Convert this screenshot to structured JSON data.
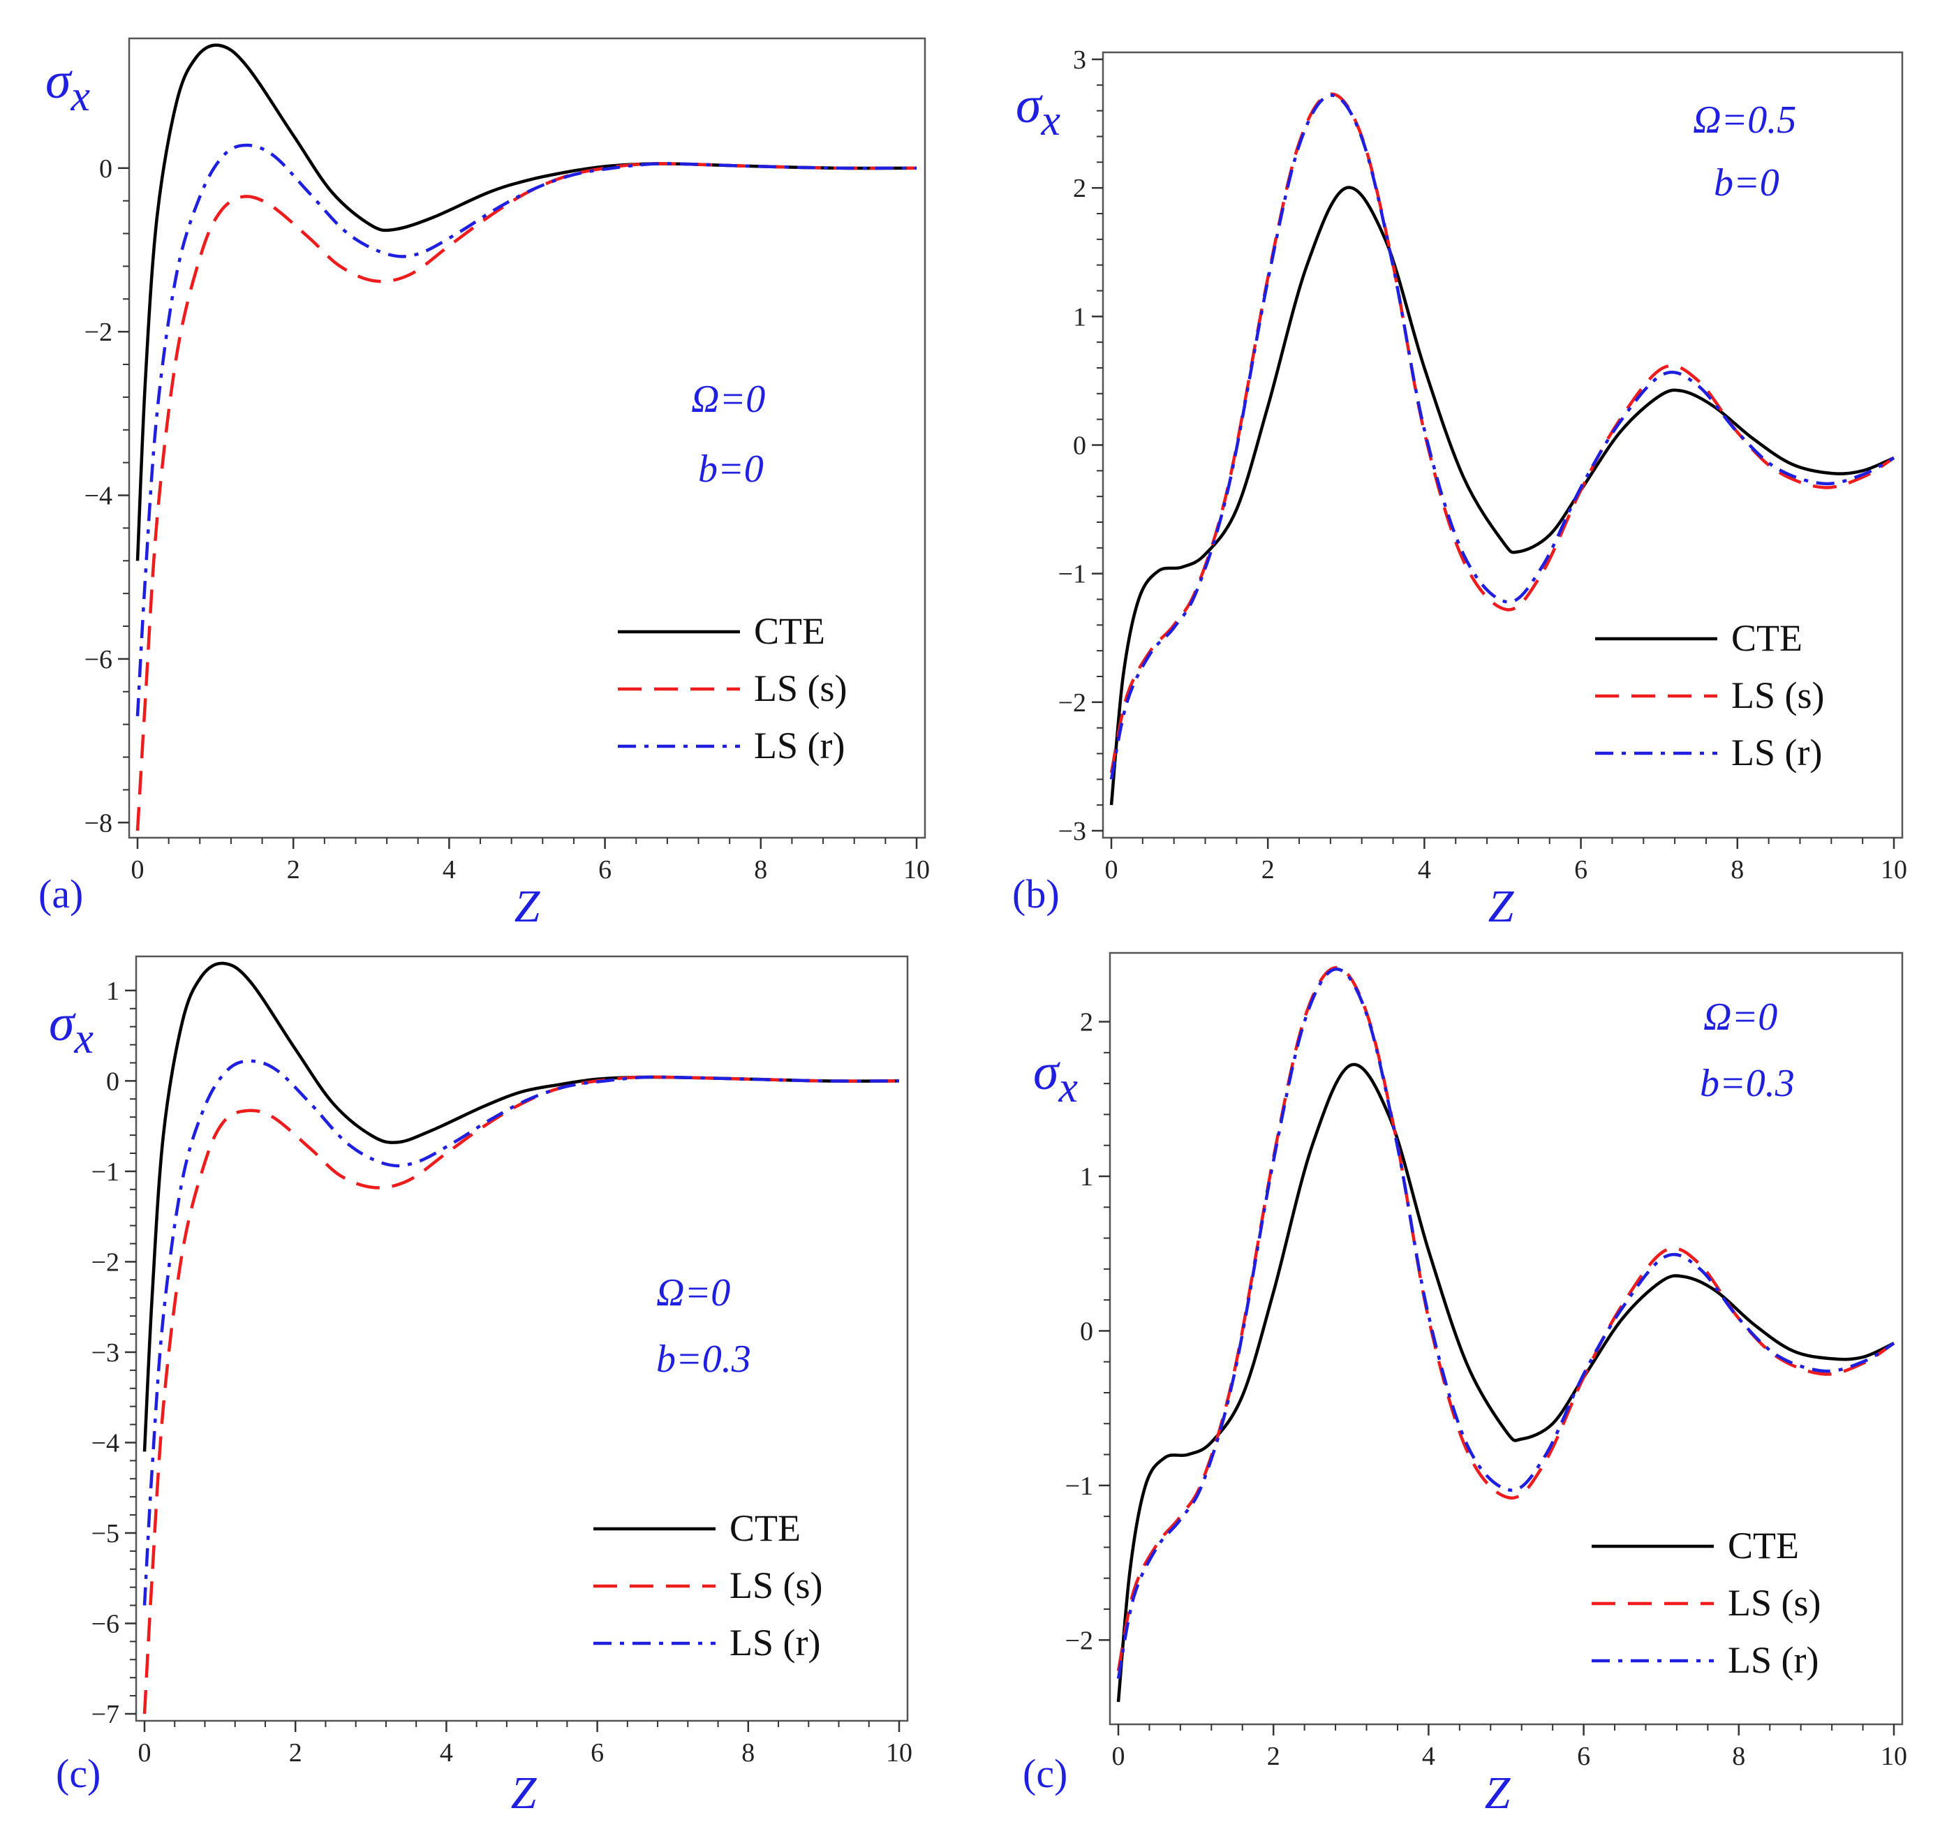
{
  "chart_data": [
    {
      "type": "line",
      "panel_label": "(a)",
      "ylabel": "σx",
      "xlabel": "Z",
      "xlim": [
        0,
        10
      ],
      "ylim": [
        -8.1,
        1.5
      ],
      "xticks": [
        0,
        2,
        4,
        6,
        8,
        10
      ],
      "yticks": [
        0,
        -2,
        -4,
        -6,
        -8
      ],
      "annotations": [
        "Ω=0",
        "b=0"
      ],
      "legend": [
        "CTE",
        "LS (s)",
        "LS (r)"
      ],
      "series": [
        {
          "name": "CTE",
          "style": "solid",
          "color": "#000000",
          "x": [
            0,
            0.1,
            0.25,
            0.5,
            0.75,
            1.05,
            1.4,
            2,
            2.5,
            3,
            3.3,
            3.8,
            4.5,
            5,
            5.5,
            6,
            6.5,
            7,
            8,
            9,
            10
          ],
          "y": [
            -4.8,
            -2.6,
            -0.6,
            0.8,
            1.35,
            1.5,
            1.25,
            0.4,
            -0.3,
            -0.7,
            -0.75,
            -0.6,
            -0.3,
            -0.15,
            -0.05,
            0.02,
            0.05,
            0.05,
            0.02,
            0,
            0
          ]
        },
        {
          "name": "LS (s)",
          "style": "dash",
          "color": "#ee1c1c",
          "x": [
            0,
            0.1,
            0.25,
            0.5,
            0.8,
            1.05,
            1.35,
            1.7,
            2.2,
            2.6,
            3.05,
            3.5,
            4,
            4.5,
            5,
            5.5,
            6,
            6.5,
            7,
            8,
            9,
            10
          ],
          "y": [
            -8.1,
            -6.5,
            -4.3,
            -2.3,
            -1.1,
            -0.55,
            -0.35,
            -0.45,
            -0.85,
            -1.2,
            -1.38,
            -1.3,
            -0.95,
            -0.6,
            -0.3,
            -0.1,
            0,
            0.05,
            0.05,
            0.02,
            0,
            0
          ]
        },
        {
          "name": "LS (r)",
          "style": "dashdot",
          "color": "#1f1fe0",
          "x": [
            0,
            0.1,
            0.25,
            0.5,
            0.8,
            1.1,
            1.4,
            1.75,
            2.2,
            2.7,
            3.2,
            3.6,
            4.1,
            4.6,
            5.1,
            5.6,
            6.1,
            6.6,
            7,
            8,
            9,
            10
          ],
          "y": [
            -6.7,
            -5.0,
            -3.0,
            -1.3,
            -0.35,
            0.15,
            0.28,
            0.15,
            -0.3,
            -0.8,
            -1.05,
            -1.05,
            -0.8,
            -0.5,
            -0.25,
            -0.08,
            0,
            0.05,
            0.05,
            0.02,
            0,
            0
          ]
        }
      ]
    },
    {
      "type": "line",
      "panel_label": "(b)",
      "ylabel": "σx",
      "xlabel": "Z",
      "xlim": [
        0,
        10
      ],
      "ylim": [
        -3,
        3
      ],
      "xticks": [
        0,
        2,
        4,
        6,
        8,
        10
      ],
      "yticks": [
        3,
        2,
        1,
        0,
        -1,
        -2,
        -3
      ],
      "annotations": [
        "Ω=0.5",
        "b=0"
      ],
      "legend": [
        "CTE",
        "LS (s)",
        "LS (r)"
      ],
      "series": [
        {
          "name": "CTE",
          "style": "solid",
          "color": "#000000",
          "x": [
            0,
            0.15,
            0.35,
            0.6,
            0.9,
            1.2,
            1.6,
            2,
            2.5,
            3,
            3.5,
            4,
            4.5,
            5,
            5.2,
            5.6,
            6,
            6.5,
            7,
            7.3,
            7.7,
            8.2,
            8.7,
            9.2,
            9.6,
            10
          ],
          "y": [
            -2.8,
            -1.8,
            -1.2,
            -0.98,
            -0.95,
            -0.85,
            -0.5,
            0.3,
            1.4,
            2.0,
            1.6,
            0.6,
            -0.25,
            -0.75,
            -0.83,
            -0.7,
            -0.35,
            0.1,
            0.38,
            0.42,
            0.3,
            0.05,
            -0.15,
            -0.22,
            -0.2,
            -0.1
          ]
        },
        {
          "name": "LS (s)",
          "style": "dash",
          "color": "#ee1c1c",
          "x": [
            0,
            0.2,
            0.5,
            0.8,
            1.1,
            1.5,
            2,
            2.4,
            2.8,
            3.2,
            3.6,
            4,
            4.5,
            5.05,
            5.5,
            6,
            6.5,
            7.05,
            7.5,
            8,
            8.5,
            9.1,
            9.6,
            10
          ],
          "y": [
            -2.55,
            -1.95,
            -1.6,
            -1.4,
            -1.1,
            -0.3,
            1.3,
            2.35,
            2.73,
            2.4,
            1.4,
            0.1,
            -0.9,
            -1.28,
            -1.0,
            -0.35,
            0.2,
            0.6,
            0.5,
            0.1,
            -0.2,
            -0.33,
            -0.25,
            -0.1
          ]
        },
        {
          "name": "LS (r)",
          "style": "dashdot",
          "color": "#1f1fe0",
          "x": [
            0,
            0.2,
            0.5,
            0.8,
            1.1,
            1.5,
            2,
            2.4,
            2.8,
            3.2,
            3.6,
            4,
            4.5,
            5.05,
            5.5,
            6,
            6.5,
            7.05,
            7.5,
            8,
            8.5,
            9.1,
            9.6,
            10
          ],
          "y": [
            -2.6,
            -2.0,
            -1.62,
            -1.42,
            -1.12,
            -0.32,
            1.28,
            2.33,
            2.72,
            2.39,
            1.39,
            0.12,
            -0.85,
            -1.22,
            -0.95,
            -0.33,
            0.18,
            0.55,
            0.46,
            0.1,
            -0.18,
            -0.3,
            -0.23,
            -0.1
          ]
        }
      ]
    },
    {
      "type": "line",
      "panel_label": "(c)",
      "ylabel": "σx",
      "xlabel": "Z",
      "xlim": [
        0,
        10
      ],
      "ylim": [
        -7,
        1.3
      ],
      "xticks": [
        0,
        2,
        4,
        6,
        8,
        10
      ],
      "yticks": [
        1,
        0,
        -1,
        -2,
        -3,
        -4,
        -5,
        -6,
        -7
      ],
      "annotations": [
        "Ω=0",
        "b=0.3"
      ],
      "legend": [
        "CTE",
        "LS (s)",
        "LS (r)"
      ],
      "series": [
        {
          "name": "CTE",
          "style": "solid",
          "color": "#000000",
          "x": [
            0,
            0.1,
            0.25,
            0.5,
            0.75,
            1.05,
            1.4,
            2,
            2.5,
            3,
            3.35,
            3.8,
            4.5,
            5,
            5.5,
            6,
            6.5,
            7,
            8,
            9,
            10
          ],
          "y": [
            -4.1,
            -2.4,
            -0.6,
            0.65,
            1.15,
            1.3,
            1.1,
            0.35,
            -0.25,
            -0.6,
            -0.68,
            -0.55,
            -0.28,
            -0.12,
            -0.04,
            0.02,
            0.04,
            0.04,
            0.02,
            0,
            0
          ]
        },
        {
          "name": "LS (s)",
          "style": "dash",
          "color": "#ee1c1c",
          "x": [
            0,
            0.1,
            0.25,
            0.5,
            0.8,
            1.05,
            1.35,
            1.7,
            2.2,
            2.6,
            3.05,
            3.5,
            4,
            4.5,
            5,
            5.5,
            6,
            6.5,
            7,
            8,
            9,
            10
          ],
          "y": [
            -7.0,
            -5.5,
            -3.6,
            -1.9,
            -0.9,
            -0.45,
            -0.33,
            -0.4,
            -0.75,
            -1.05,
            -1.18,
            -1.1,
            -0.8,
            -0.5,
            -0.25,
            -0.08,
            0,
            0.04,
            0.04,
            0.02,
            0,
            0
          ]
        },
        {
          "name": "LS (r)",
          "style": "dashdot",
          "color": "#1f1fe0",
          "x": [
            0,
            0.1,
            0.25,
            0.5,
            0.8,
            1.1,
            1.4,
            1.75,
            2.2,
            2.7,
            3.2,
            3.6,
            4.1,
            4.6,
            5.1,
            5.6,
            6.1,
            6.6,
            7,
            8,
            9,
            10
          ],
          "y": [
            -5.8,
            -4.3,
            -2.6,
            -1.1,
            -0.28,
            0.12,
            0.22,
            0.12,
            -0.25,
            -0.7,
            -0.92,
            -0.9,
            -0.68,
            -0.42,
            -0.2,
            -0.06,
            0,
            0.04,
            0.04,
            0.02,
            0,
            0
          ]
        }
      ]
    },
    {
      "type": "line",
      "panel_label": "(c)",
      "ylabel": "σx",
      "xlabel": "Z",
      "xlim": [
        0,
        10
      ],
      "ylim": [
        -2.5,
        2.4
      ],
      "xticks": [
        0,
        2,
        4,
        6,
        8,
        10
      ],
      "yticks": [
        2,
        1,
        0,
        -1,
        -2
      ],
      "annotations": [
        "Ω=0",
        "b=0.3"
      ],
      "legend": [
        "CTE",
        "LS (s)",
        "LS (r)"
      ],
      "series": [
        {
          "name": "CTE",
          "style": "solid",
          "color": "#000000",
          "x": [
            0,
            0.15,
            0.35,
            0.6,
            0.9,
            1.2,
            1.6,
            2,
            2.5,
            3,
            3.5,
            4,
            4.5,
            5,
            5.2,
            5.6,
            6,
            6.5,
            7,
            7.3,
            7.7,
            8.2,
            8.7,
            9.2,
            9.6,
            10
          ],
          "y": [
            -2.4,
            -1.55,
            -1.0,
            -0.82,
            -0.8,
            -0.72,
            -0.42,
            0.25,
            1.2,
            1.72,
            1.38,
            0.52,
            -0.22,
            -0.65,
            -0.7,
            -0.6,
            -0.3,
            0.08,
            0.32,
            0.35,
            0.26,
            0.04,
            -0.13,
            -0.18,
            -0.17,
            -0.08
          ]
        },
        {
          "name": "LS (s)",
          "style": "dash",
          "color": "#ee1c1c",
          "x": [
            0,
            0.2,
            0.5,
            0.8,
            1.1,
            1.5,
            2,
            2.4,
            2.8,
            3.2,
            3.6,
            4,
            4.5,
            5.05,
            5.5,
            6,
            6.5,
            7.05,
            7.5,
            8,
            8.5,
            9.1,
            9.6,
            10
          ],
          "y": [
            -2.2,
            -1.68,
            -1.38,
            -1.2,
            -0.95,
            -0.25,
            1.12,
            2.02,
            2.35,
            2.06,
            1.2,
            0.08,
            -0.78,
            -1.08,
            -0.85,
            -0.3,
            0.17,
            0.52,
            0.43,
            0.08,
            -0.17,
            -0.28,
            -0.21,
            -0.08
          ]
        },
        {
          "name": "LS (r)",
          "style": "dashdot",
          "color": "#1f1fe0",
          "x": [
            0,
            0.2,
            0.5,
            0.8,
            1.1,
            1.5,
            2,
            2.4,
            2.8,
            3.2,
            3.6,
            4,
            4.5,
            5.05,
            5.5,
            6,
            6.5,
            7.05,
            7.5,
            8,
            8.5,
            9.1,
            9.6,
            10
          ],
          "y": [
            -2.25,
            -1.72,
            -1.4,
            -1.22,
            -0.97,
            -0.27,
            1.1,
            2.0,
            2.34,
            2.05,
            1.19,
            0.1,
            -0.74,
            -1.03,
            -0.81,
            -0.28,
            0.15,
            0.48,
            0.4,
            0.08,
            -0.16,
            -0.26,
            -0.2,
            -0.08
          ]
        }
      ]
    }
  ]
}
